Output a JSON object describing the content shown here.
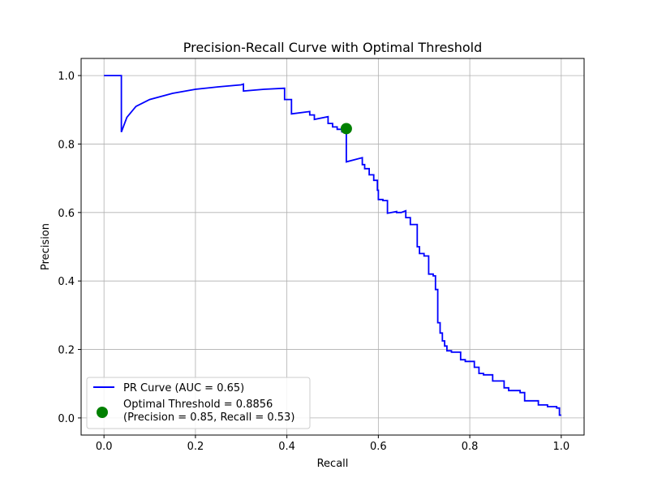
{
  "chart_data": {
    "type": "line",
    "title": "Precision-Recall Curve with Optimal Threshold",
    "xlabel": "Recall",
    "ylabel": "Precision",
    "xlim": [
      -0.05,
      1.05
    ],
    "ylim": [
      -0.05,
      1.05
    ],
    "grid": true,
    "legend_position": "lower-left",
    "x_ticks": [
      "0.0",
      "0.2",
      "0.4",
      "0.6",
      "0.8",
      "1.0"
    ],
    "y_ticks": [
      "0.0",
      "0.2",
      "0.4",
      "0.6",
      "0.8",
      "1.0"
    ],
    "series": [
      {
        "name": "PR Curve (AUC = 0.65)",
        "color": "#0000ff",
        "style": "step",
        "x": [
          0.0,
          0.038,
          0.038,
          0.05,
          0.07,
          0.1,
          0.15,
          0.2,
          0.25,
          0.3,
          0.305,
          0.305,
          0.35,
          0.395,
          0.395,
          0.41,
          0.41,
          0.45,
          0.45,
          0.46,
          0.46,
          0.49,
          0.49,
          0.5,
          0.5,
          0.51,
          0.51,
          0.52,
          0.52,
          0.53,
          0.53,
          0.565,
          0.565,
          0.57,
          0.57,
          0.58,
          0.58,
          0.59,
          0.59,
          0.598,
          0.598,
          0.6,
          0.6,
          0.61,
          0.61,
          0.62,
          0.62,
          0.64,
          0.64,
          0.65,
          0.65,
          0.66,
          0.66,
          0.67,
          0.67,
          0.685,
          0.685,
          0.69,
          0.69,
          0.7,
          0.7,
          0.71,
          0.71,
          0.72,
          0.72,
          0.725,
          0.725,
          0.73,
          0.73,
          0.735,
          0.735,
          0.74,
          0.74,
          0.745,
          0.745,
          0.75,
          0.75,
          0.76,
          0.76,
          0.78,
          0.78,
          0.79,
          0.79,
          0.81,
          0.81,
          0.82,
          0.82,
          0.83,
          0.83,
          0.85,
          0.85,
          0.875,
          0.875,
          0.885,
          0.885,
          0.91,
          0.91,
          0.92,
          0.92,
          0.95,
          0.95,
          0.97,
          0.97,
          0.99,
          0.99,
          0.996,
          0.996,
          1.0
        ],
        "y": [
          1.0,
          1.0,
          0.835,
          0.878,
          0.91,
          0.93,
          0.948,
          0.96,
          0.967,
          0.973,
          0.975,
          0.955,
          0.96,
          0.963,
          0.93,
          0.93,
          0.888,
          0.895,
          0.885,
          0.885,
          0.872,
          0.88,
          0.86,
          0.86,
          0.85,
          0.85,
          0.843,
          0.843,
          0.836,
          0.836,
          0.748,
          0.76,
          0.74,
          0.74,
          0.728,
          0.728,
          0.71,
          0.71,
          0.694,
          0.694,
          0.665,
          0.665,
          0.638,
          0.638,
          0.635,
          0.635,
          0.598,
          0.603,
          0.6,
          0.6,
          0.6,
          0.605,
          0.585,
          0.585,
          0.565,
          0.565,
          0.5,
          0.5,
          0.48,
          0.48,
          0.473,
          0.473,
          0.42,
          0.42,
          0.415,
          0.415,
          0.375,
          0.375,
          0.278,
          0.278,
          0.248,
          0.248,
          0.225,
          0.225,
          0.21,
          0.21,
          0.196,
          0.196,
          0.192,
          0.192,
          0.17,
          0.17,
          0.165,
          0.165,
          0.148,
          0.148,
          0.13,
          0.13,
          0.126,
          0.126,
          0.108,
          0.108,
          0.088,
          0.088,
          0.08,
          0.08,
          0.074,
          0.074,
          0.05,
          0.05,
          0.038,
          0.038,
          0.033,
          0.033,
          0.029,
          0.029,
          0.008,
          0.008
        ]
      },
      {
        "name": "Optimal Threshold = 0.8856\n(Precision = 0.85, Recall = 0.53)",
        "color": "#008000",
        "style": "marker",
        "x": [
          0.53
        ],
        "y": [
          0.845
        ]
      }
    ]
  }
}
